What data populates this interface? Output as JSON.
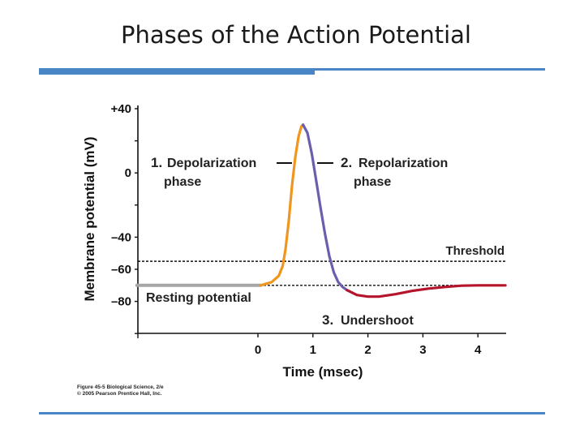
{
  "slide": {
    "title": "Phases of the Action Potential"
  },
  "chart_data": {
    "type": "line",
    "xlabel": "Time (msec)",
    "ylabel": "Membrane potential (mV)",
    "xlim": [
      -2.2,
      4.5
    ],
    "ylim": [
      -100,
      40
    ],
    "x_ticks": [
      0,
      1,
      2,
      3,
      4
    ],
    "x_tick_labels": [
      "0",
      "1",
      "2",
      "3",
      "4"
    ],
    "y_ticks": [
      40,
      20,
      0,
      -20,
      -40,
      -60,
      -80,
      -100
    ],
    "y_tick_labels": [
      "+40",
      "",
      "0",
      "",
      "–40",
      "–60",
      "–80",
      ""
    ],
    "threshold": {
      "label": "Threshold",
      "value": -55
    },
    "resting_level": -70,
    "series": [
      {
        "name": "Resting potential",
        "color": "#a6a6a6",
        "x": [
          -2.2,
          0.05
        ],
        "y": [
          -70,
          -70
        ]
      },
      {
        "name": "Depolarization phase",
        "color": "#f0961e",
        "x": [
          0.05,
          0.25,
          0.38,
          0.45,
          0.5,
          0.56,
          0.62,
          0.68,
          0.74,
          0.79,
          0.82
        ],
        "y": [
          -70,
          -68,
          -64,
          -58,
          -48,
          -30,
          -8,
          10,
          23,
          29,
          30
        ]
      },
      {
        "name": "Repolarization phase",
        "color": "#6a5fae",
        "x": [
          0.82,
          0.9,
          0.98,
          1.06,
          1.14,
          1.22,
          1.3,
          1.38,
          1.46,
          1.54,
          1.62
        ],
        "y": [
          30,
          25,
          12,
          -5,
          -22,
          -38,
          -52,
          -62,
          -68,
          -71,
          -73
        ]
      },
      {
        "name": "Undershoot",
        "color": "#b5142a",
        "x": [
          1.62,
          1.8,
          2.0,
          2.2,
          2.5,
          2.8,
          3.1,
          3.4,
          3.7,
          4.0,
          4.5
        ],
        "y": [
          -73,
          -76,
          -77,
          -77,
          -75.5,
          -73.5,
          -72,
          -71,
          -70.2,
          -70,
          -70
        ]
      }
    ],
    "annotations": [
      {
        "number": "1.",
        "text": "Depolarization",
        "text2": "phase"
      },
      {
        "number": "2.",
        "text": "Repolarization",
        "text2": "phase"
      },
      {
        "number": "3.",
        "text": "Undershoot",
        "text2": ""
      },
      {
        "number": "",
        "text": "Resting potential",
        "text2": ""
      }
    ],
    "legend": "none",
    "grid": false
  },
  "caption": {
    "line1": "Figure 45-5  Biological Science, 2/e",
    "line2": "© 2005 Pearson Prentice Hall, Inc."
  }
}
